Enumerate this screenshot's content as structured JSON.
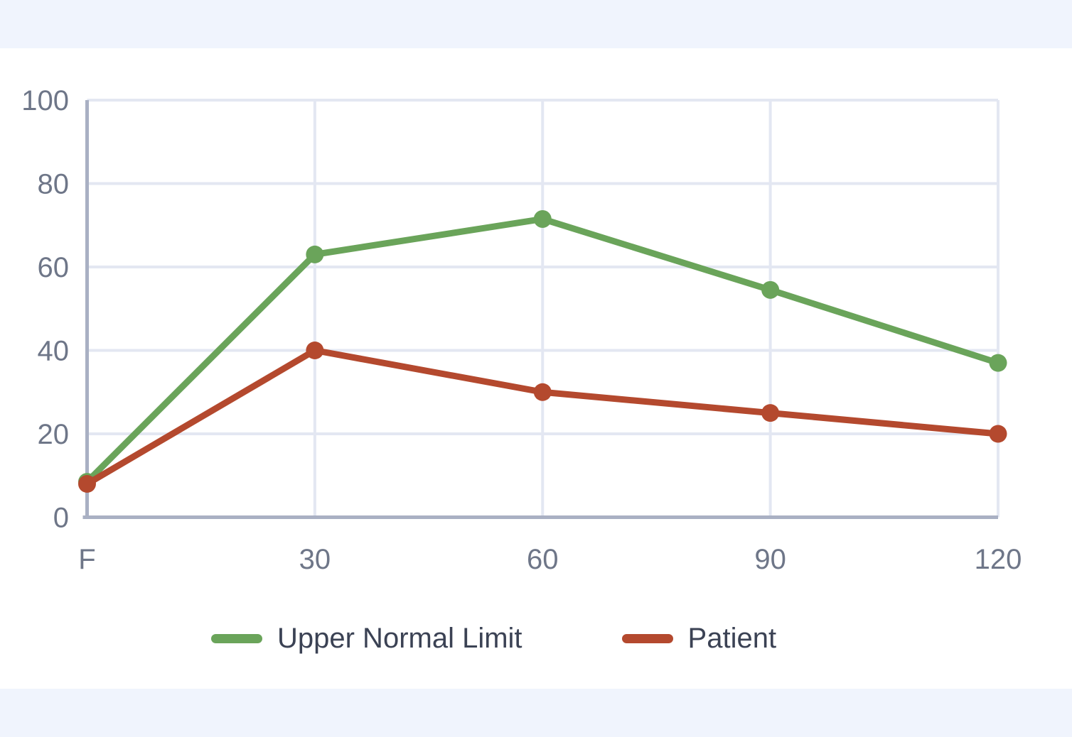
{
  "page": {
    "band_color": "#f0f4fd",
    "surface_color": "#ffffff"
  },
  "chart_data": {
    "type": "line",
    "categories": [
      "F",
      "30",
      "60",
      "90",
      "120"
    ],
    "series": [
      {
        "name": "Upper Normal Limit",
        "color": "#6aa45a",
        "values": [
          8.5,
          63,
          71.5,
          54.5,
          37
        ]
      },
      {
        "name": "Patient",
        "color": "#b4492e",
        "values": [
          8,
          40,
          30,
          25,
          20
        ]
      }
    ],
    "ylim": [
      0,
      100
    ],
    "yticks": [
      0,
      20,
      40,
      60,
      80,
      100
    ],
    "grid": true,
    "legend_position": "bottom",
    "style": {
      "gridline_color": "#e3e7f2",
      "axis_line_color": "#a9b0c3",
      "tick_label_color": "#6e7688",
      "legend_text_color": "#3b4254",
      "line_width": 9,
      "point_radius": 12.5
    }
  }
}
